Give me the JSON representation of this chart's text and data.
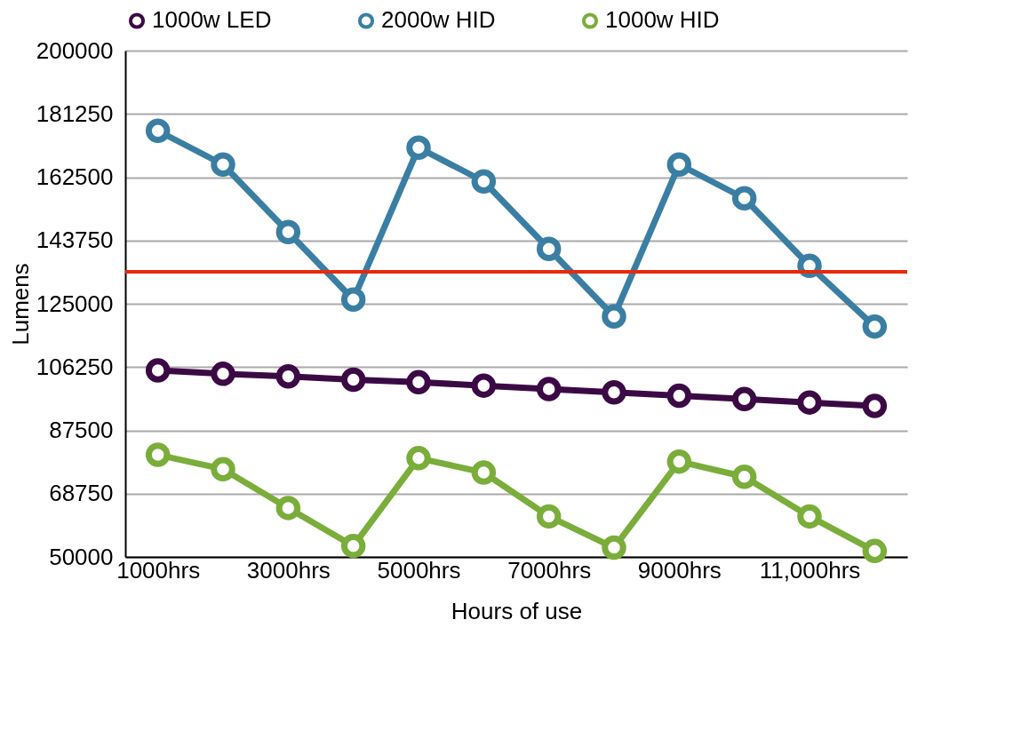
{
  "chart_data": {
    "type": "line",
    "xlabel": "Hours of use",
    "ylabel": "Lumens",
    "categories": [
      "1000hrs",
      null,
      "3000hrs",
      null,
      "5000hrs",
      null,
      "7000hrs",
      null,
      "9000hrs",
      null,
      "11,000hrs",
      null
    ],
    "series": [
      {
        "name": "1000w LED",
        "color": "#3b0a45",
        "values": [
          105250,
          104250,
          103500,
          102500,
          101750,
          100750,
          99750,
          98750,
          97750,
          96750,
          95750,
          94750
        ]
      },
      {
        "name": "2000w HID",
        "color": "#3a7fa3",
        "values": [
          176250,
          166250,
          146250,
          126250,
          171250,
          161250,
          141250,
          121250,
          166250,
          156250,
          136250,
          118250
        ]
      },
      {
        "name": "1000w HID",
        "color": "#7aad3a",
        "values": [
          80250,
          76000,
          64500,
          53250,
          79250,
          75000,
          62000,
          52750,
          78250,
          73750,
          62000,
          51750
        ]
      }
    ],
    "ylim": [
      50000,
      200000
    ],
    "yticks": [
      50000,
      68750,
      87500,
      106250,
      125000,
      143750,
      162500,
      181250,
      200000
    ],
    "ref_lines": [
      {
        "axis": "y",
        "value": 134500,
        "color": "#e8290b"
      }
    ],
    "grid": "y",
    "legend": "top",
    "marker": "circle",
    "line_style": "solid"
  }
}
